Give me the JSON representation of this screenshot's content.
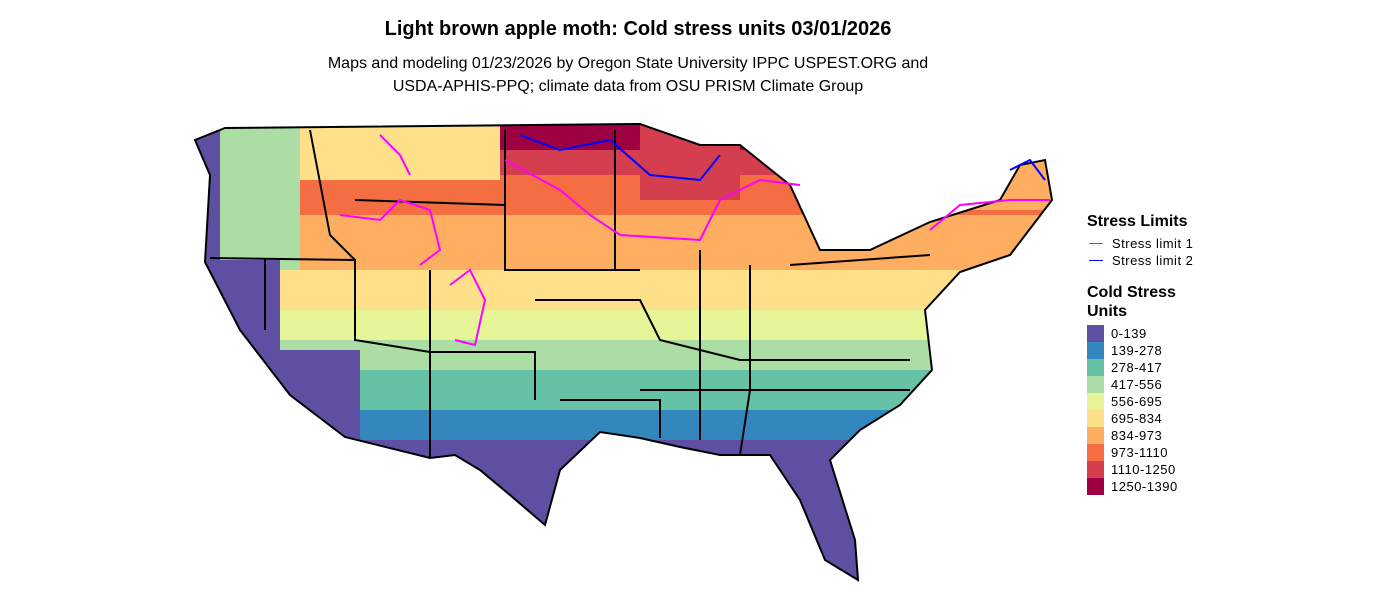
{
  "title": "Light brown apple moth: Cold stress units 03/01/2026",
  "subtitle": [
    "Maps and modeling 01/23/2026 by Oregon State University IPPC USPEST.ORG and",
    "USDA-APHIS-PPQ; climate data from OSU PRISM Climate Group"
  ],
  "legend": {
    "stress_limits": {
      "title": "Stress Limits",
      "items": [
        {
          "label": "Stress limit 1",
          "color": "#ff00ff"
        },
        {
          "label": "Stress limit 2",
          "color": "#0000ff"
        }
      ]
    },
    "cold_stress_units": {
      "title": "Cold Stress Units",
      "items": [
        {
          "label": "0-139",
          "color": "#5e4fa2"
        },
        {
          "label": "139-278",
          "color": "#3288bd"
        },
        {
          "label": "278-417",
          "color": "#66c2a5"
        },
        {
          "label": "417-556",
          "color": "#abdda4"
        },
        {
          "label": "556-695",
          "color": "#e6f598"
        },
        {
          "label": "695-834",
          "color": "#fee08b"
        },
        {
          "label": "834-973",
          "color": "#fdae61"
        },
        {
          "label": "973-1110",
          "color": "#f46d43"
        },
        {
          "label": "1110-1250",
          "color": "#d53e4f"
        },
        {
          "label": "1250-1390",
          "color": "#9e0142"
        }
      ]
    }
  }
}
